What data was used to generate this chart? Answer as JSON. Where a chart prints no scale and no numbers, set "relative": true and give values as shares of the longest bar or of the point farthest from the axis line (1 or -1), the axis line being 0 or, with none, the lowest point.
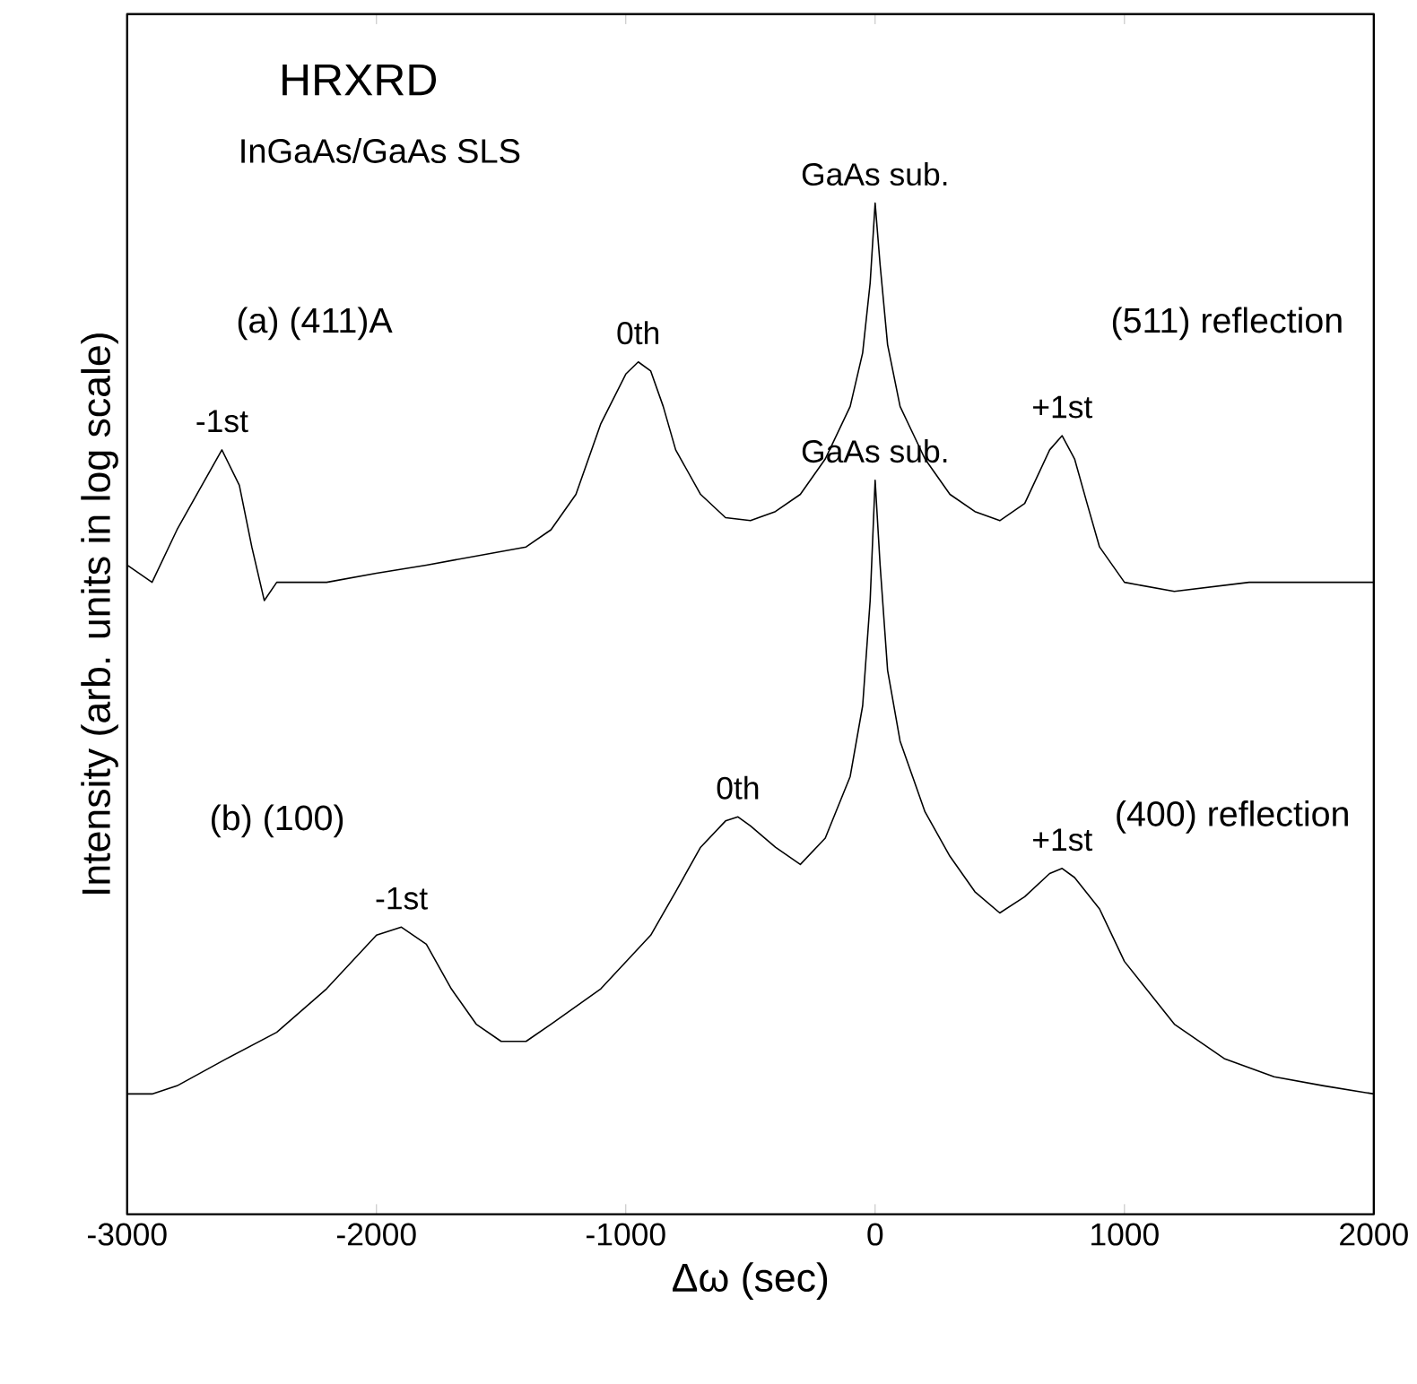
{
  "chart_data": {
    "type": "line",
    "relative": true,
    "xlabel": "Δω (sec)",
    "ylabel": "Intensity (arb. units in log scale)",
    "xlim": [
      -3000,
      2000
    ],
    "xticks": [
      -3000,
      -2000,
      -1000,
      0,
      1000,
      2000
    ],
    "series": [
      {
        "color": "#000000",
        "x": [
          -3000,
          -2900,
          -2800,
          -2700,
          -2620,
          -2550,
          -2500,
          -2450,
          -2400,
          -2200,
          -2000,
          -1800,
          -1600,
          -1400,
          -1300,
          -1200,
          -1100,
          -1000,
          -950,
          -900,
          -850,
          -800,
          -700,
          -600,
          -500,
          -400,
          -300,
          -200,
          -100,
          -50,
          -20,
          0,
          20,
          50,
          100,
          200,
          300,
          400,
          500,
          600,
          700,
          750,
          800,
          850,
          900,
          1000,
          1200,
          1500,
          1800,
          2000
        ],
        "values": [
          0.642,
          0.625,
          0.677,
          0.721,
          0.756,
          0.721,
          0.66,
          0.607,
          0.625,
          0.625,
          0.634,
          0.642,
          0.651,
          0.66,
          0.677,
          0.712,
          0.782,
          0.831,
          0.843,
          0.834,
          0.799,
          0.756,
          0.712,
          0.689,
          0.686,
          0.695,
          0.712,
          0.747,
          0.799,
          0.852,
          0.921,
          1.0,
          0.939,
          0.86,
          0.799,
          0.747,
          0.712,
          0.695,
          0.686,
          0.703,
          0.756,
          0.77,
          0.747,
          0.703,
          0.66,
          0.625,
          0.616,
          0.625,
          0.625,
          0.625
        ]
      },
      {
        "color": "#000000",
        "x": [
          -3000,
          -2900,
          -2800,
          -2600,
          -2400,
          -2200,
          -2000,
          -1900,
          -1800,
          -1700,
          -1600,
          -1500,
          -1400,
          -1300,
          -1100,
          -900,
          -800,
          -700,
          -600,
          -550,
          -500,
          -400,
          -300,
          -200,
          -100,
          -50,
          -20,
          0,
          20,
          50,
          100,
          200,
          300,
          400,
          500,
          600,
          700,
          750,
          800,
          900,
          1000,
          1200,
          1400,
          1600,
          1800,
          2000
        ],
        "values": [
          0.119,
          0.119,
          0.127,
          0.154,
          0.18,
          0.223,
          0.276,
          0.284,
          0.267,
          0.223,
          0.188,
          0.171,
          0.171,
          0.188,
          0.223,
          0.276,
          0.319,
          0.363,
          0.389,
          0.393,
          0.384,
          0.363,
          0.346,
          0.372,
          0.433,
          0.503,
          0.607,
          0.726,
          0.642,
          0.538,
          0.468,
          0.398,
          0.354,
          0.319,
          0.298,
          0.314,
          0.337,
          0.342,
          0.333,
          0.302,
          0.25,
          0.188,
          0.154,
          0.136,
          0.127,
          0.119
        ]
      }
    ],
    "annotations": [
      "HRXRD",
      "InGaAs/GaAs SLS",
      "(a) (411)A",
      "(511) reflection",
      "(b) (100)",
      "(400) reflection",
      {
        "text": "-1st",
        "x": -2620,
        "y": 0.756
      },
      {
        "text": "0th",
        "x": -950,
        "y": 0.843
      },
      {
        "text": "GaAs sub.",
        "x": 0,
        "y": 1.0
      },
      {
        "text": "+1st",
        "x": 750,
        "y": 0.77
      },
      {
        "text": "-1st",
        "x": -1900,
        "y": 0.284
      },
      {
        "text": "0th",
        "x": -550,
        "y": 0.393
      },
      {
        "text": "GaAs sub.",
        "x": 0,
        "y": 0.726
      },
      {
        "text": "+1st",
        "x": 750,
        "y": 0.342
      }
    ]
  }
}
